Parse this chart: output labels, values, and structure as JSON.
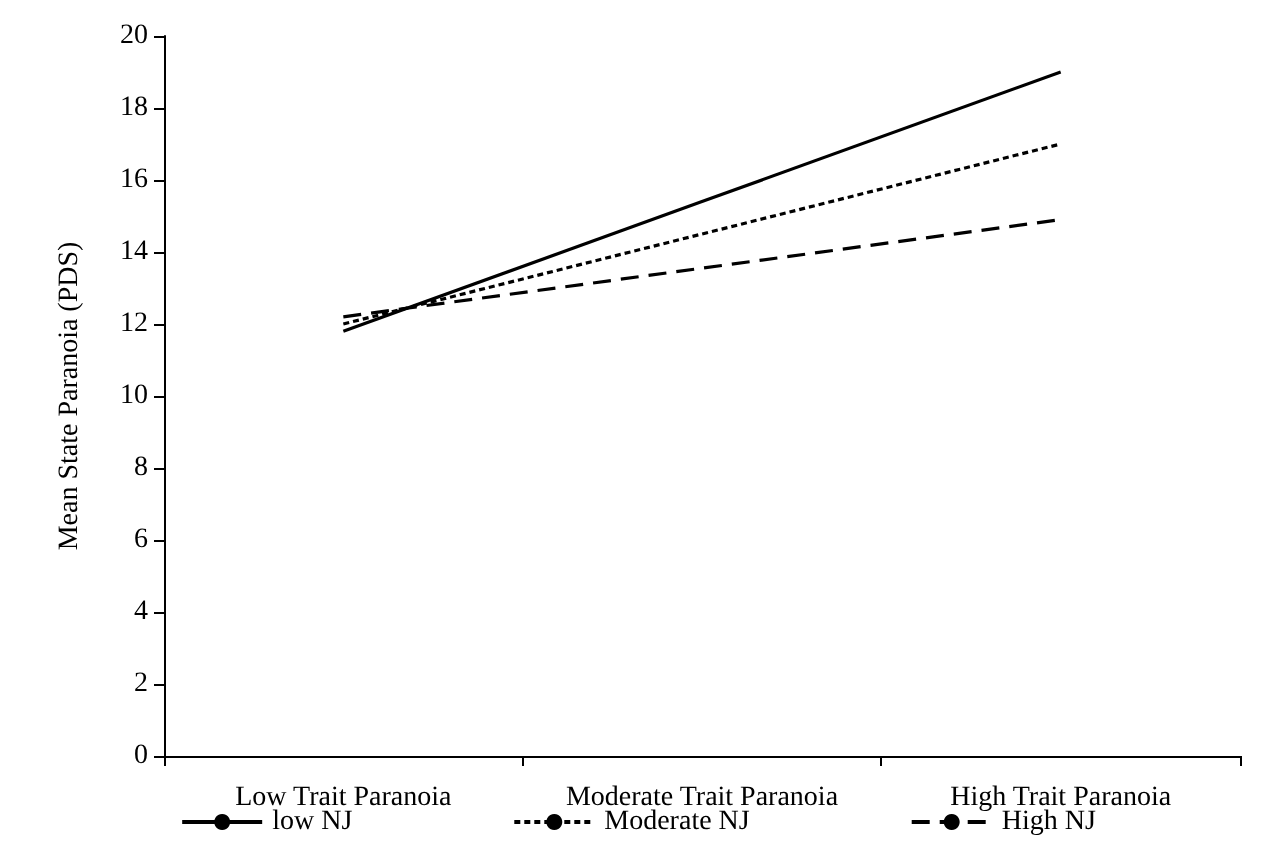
{
  "chart_data": {
    "type": "line",
    "ylabel": "Mean State Paranoia (PDS)",
    "categories": [
      "Low Trait Paranoia",
      "Moderate Trait Paranoia",
      "High Trait Paranoia"
    ],
    "series": [
      {
        "name": "low NJ",
        "color": "#000000",
        "line_style": "solid",
        "values": [
          11.8,
          15.4,
          19.0
        ]
      },
      {
        "name": "Moderate NJ",
        "color": "#000000",
        "line_style": "dotted",
        "values": [
          12.0,
          14.5,
          17.0
        ]
      },
      {
        "name": "High NJ",
        "color": "#000000",
        "line_style": "dashed",
        "values": [
          12.2,
          13.55,
          14.9
        ]
      }
    ],
    "ylim": [
      0,
      20
    ],
    "yticks": [
      0,
      2,
      4,
      6,
      8,
      10,
      12,
      14,
      16,
      18,
      20
    ],
    "grid": false,
    "legend": "bottom",
    "marker": "none"
  }
}
